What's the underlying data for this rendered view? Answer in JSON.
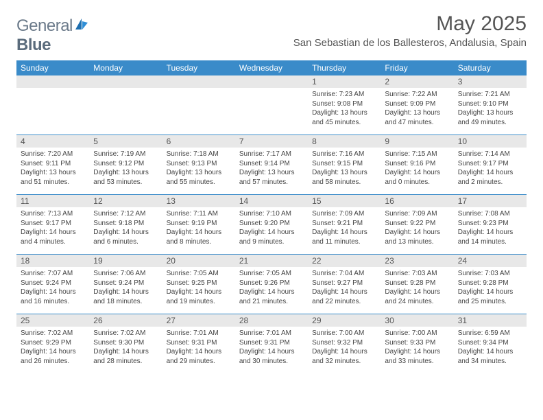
{
  "brand": {
    "name1": "General",
    "name2": "Blue"
  },
  "title": "May 2025",
  "location": "San Sebastian de los Ballesteros, Andalusia, Spain",
  "colors": {
    "header_bar": "#3a8bc9",
    "daynum_bg": "#e8e8e8",
    "text": "#444444",
    "title_text": "#555555",
    "rule": "#3a8bc9"
  },
  "weekdays": [
    "Sunday",
    "Monday",
    "Tuesday",
    "Wednesday",
    "Thursday",
    "Friday",
    "Saturday"
  ],
  "weeks": [
    [
      {
        "blank": true
      },
      {
        "blank": true
      },
      {
        "blank": true
      },
      {
        "blank": true
      },
      {
        "n": "1",
        "sr": "Sunrise: 7:23 AM",
        "ss": "Sunset: 9:08 PM",
        "d1": "Daylight: 13 hours",
        "d2": "and 45 minutes."
      },
      {
        "n": "2",
        "sr": "Sunrise: 7:22 AM",
        "ss": "Sunset: 9:09 PM",
        "d1": "Daylight: 13 hours",
        "d2": "and 47 minutes."
      },
      {
        "n": "3",
        "sr": "Sunrise: 7:21 AM",
        "ss": "Sunset: 9:10 PM",
        "d1": "Daylight: 13 hours",
        "d2": "and 49 minutes."
      }
    ],
    [
      {
        "n": "4",
        "sr": "Sunrise: 7:20 AM",
        "ss": "Sunset: 9:11 PM",
        "d1": "Daylight: 13 hours",
        "d2": "and 51 minutes."
      },
      {
        "n": "5",
        "sr": "Sunrise: 7:19 AM",
        "ss": "Sunset: 9:12 PM",
        "d1": "Daylight: 13 hours",
        "d2": "and 53 minutes."
      },
      {
        "n": "6",
        "sr": "Sunrise: 7:18 AM",
        "ss": "Sunset: 9:13 PM",
        "d1": "Daylight: 13 hours",
        "d2": "and 55 minutes."
      },
      {
        "n": "7",
        "sr": "Sunrise: 7:17 AM",
        "ss": "Sunset: 9:14 PM",
        "d1": "Daylight: 13 hours",
        "d2": "and 57 minutes."
      },
      {
        "n": "8",
        "sr": "Sunrise: 7:16 AM",
        "ss": "Sunset: 9:15 PM",
        "d1": "Daylight: 13 hours",
        "d2": "and 58 minutes."
      },
      {
        "n": "9",
        "sr": "Sunrise: 7:15 AM",
        "ss": "Sunset: 9:16 PM",
        "d1": "Daylight: 14 hours",
        "d2": "and 0 minutes."
      },
      {
        "n": "10",
        "sr": "Sunrise: 7:14 AM",
        "ss": "Sunset: 9:17 PM",
        "d1": "Daylight: 14 hours",
        "d2": "and 2 minutes."
      }
    ],
    [
      {
        "n": "11",
        "sr": "Sunrise: 7:13 AM",
        "ss": "Sunset: 9:17 PM",
        "d1": "Daylight: 14 hours",
        "d2": "and 4 minutes."
      },
      {
        "n": "12",
        "sr": "Sunrise: 7:12 AM",
        "ss": "Sunset: 9:18 PM",
        "d1": "Daylight: 14 hours",
        "d2": "and 6 minutes."
      },
      {
        "n": "13",
        "sr": "Sunrise: 7:11 AM",
        "ss": "Sunset: 9:19 PM",
        "d1": "Daylight: 14 hours",
        "d2": "and 8 minutes."
      },
      {
        "n": "14",
        "sr": "Sunrise: 7:10 AM",
        "ss": "Sunset: 9:20 PM",
        "d1": "Daylight: 14 hours",
        "d2": "and 9 minutes."
      },
      {
        "n": "15",
        "sr": "Sunrise: 7:09 AM",
        "ss": "Sunset: 9:21 PM",
        "d1": "Daylight: 14 hours",
        "d2": "and 11 minutes."
      },
      {
        "n": "16",
        "sr": "Sunrise: 7:09 AM",
        "ss": "Sunset: 9:22 PM",
        "d1": "Daylight: 14 hours",
        "d2": "and 13 minutes."
      },
      {
        "n": "17",
        "sr": "Sunrise: 7:08 AM",
        "ss": "Sunset: 9:23 PM",
        "d1": "Daylight: 14 hours",
        "d2": "and 14 minutes."
      }
    ],
    [
      {
        "n": "18",
        "sr": "Sunrise: 7:07 AM",
        "ss": "Sunset: 9:24 PM",
        "d1": "Daylight: 14 hours",
        "d2": "and 16 minutes."
      },
      {
        "n": "19",
        "sr": "Sunrise: 7:06 AM",
        "ss": "Sunset: 9:24 PM",
        "d1": "Daylight: 14 hours",
        "d2": "and 18 minutes."
      },
      {
        "n": "20",
        "sr": "Sunrise: 7:05 AM",
        "ss": "Sunset: 9:25 PM",
        "d1": "Daylight: 14 hours",
        "d2": "and 19 minutes."
      },
      {
        "n": "21",
        "sr": "Sunrise: 7:05 AM",
        "ss": "Sunset: 9:26 PM",
        "d1": "Daylight: 14 hours",
        "d2": "and 21 minutes."
      },
      {
        "n": "22",
        "sr": "Sunrise: 7:04 AM",
        "ss": "Sunset: 9:27 PM",
        "d1": "Daylight: 14 hours",
        "d2": "and 22 minutes."
      },
      {
        "n": "23",
        "sr": "Sunrise: 7:03 AM",
        "ss": "Sunset: 9:28 PM",
        "d1": "Daylight: 14 hours",
        "d2": "and 24 minutes."
      },
      {
        "n": "24",
        "sr": "Sunrise: 7:03 AM",
        "ss": "Sunset: 9:28 PM",
        "d1": "Daylight: 14 hours",
        "d2": "and 25 minutes."
      }
    ],
    [
      {
        "n": "25",
        "sr": "Sunrise: 7:02 AM",
        "ss": "Sunset: 9:29 PM",
        "d1": "Daylight: 14 hours",
        "d2": "and 26 minutes."
      },
      {
        "n": "26",
        "sr": "Sunrise: 7:02 AM",
        "ss": "Sunset: 9:30 PM",
        "d1": "Daylight: 14 hours",
        "d2": "and 28 minutes."
      },
      {
        "n": "27",
        "sr": "Sunrise: 7:01 AM",
        "ss": "Sunset: 9:31 PM",
        "d1": "Daylight: 14 hours",
        "d2": "and 29 minutes."
      },
      {
        "n": "28",
        "sr": "Sunrise: 7:01 AM",
        "ss": "Sunset: 9:31 PM",
        "d1": "Daylight: 14 hours",
        "d2": "and 30 minutes."
      },
      {
        "n": "29",
        "sr": "Sunrise: 7:00 AM",
        "ss": "Sunset: 9:32 PM",
        "d1": "Daylight: 14 hours",
        "d2": "and 32 minutes."
      },
      {
        "n": "30",
        "sr": "Sunrise: 7:00 AM",
        "ss": "Sunset: 9:33 PM",
        "d1": "Daylight: 14 hours",
        "d2": "and 33 minutes."
      },
      {
        "n": "31",
        "sr": "Sunrise: 6:59 AM",
        "ss": "Sunset: 9:34 PM",
        "d1": "Daylight: 14 hours",
        "d2": "and 34 minutes."
      }
    ]
  ]
}
